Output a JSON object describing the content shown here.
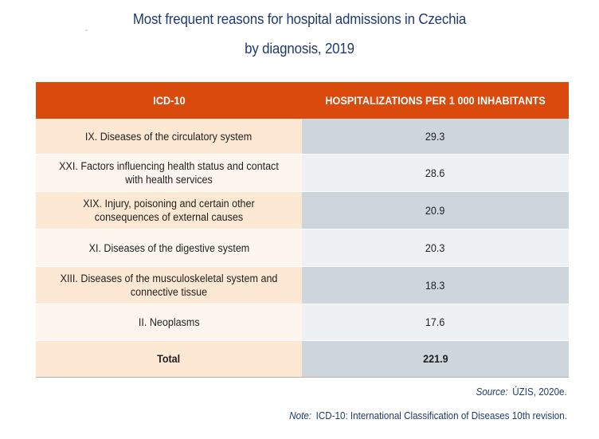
{
  "title": {
    "line1": "Most frequent reasons for hospital admissions in Czechia",
    "line2": "by diagnosis, 2019"
  },
  "table": {
    "headers": [
      "ICD-10",
      "HOSPITALIZATIONS PER 1 000 INHABITANTS"
    ],
    "rows": [
      {
        "name": "IX. Diseases of the circulatory system",
        "value": "29.3"
      },
      {
        "name": "XXI. Factors influencing health status and contact with health services",
        "value": "28.6"
      },
      {
        "name": "XIX. Injury, poisoning and certain other consequences of external causes",
        "value": "20.9"
      },
      {
        "name": "XI. Diseases of the digestive system",
        "value": "20.3"
      },
      {
        "name": "XIII. Diseases of the musculoskeletal system and connective tissue",
        "value": "18.3"
      },
      {
        "name": "II. Neoplasms",
        "value": "17.6"
      }
    ],
    "total": {
      "name": "Total",
      "value": "221.9"
    }
  },
  "footer": {
    "source_label": "Source:",
    "source_text": "ÚZIS, 2020e.",
    "note_label": "Note:",
    "note_text": "ICD-10: International Classification of Diseases 10th revision."
  },
  "colors": {
    "header_bg": "#d94a0c",
    "title_text": "#1f3a6d",
    "name_cell_dark": "#fde8d4",
    "name_cell_light": "#fef5ee",
    "value_cell_dark": "#ced6dd",
    "value_cell_light": "#eef1f4"
  }
}
